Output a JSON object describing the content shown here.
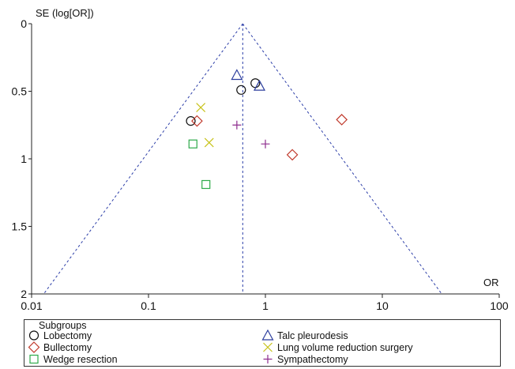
{
  "chart_data": {
    "type": "scatter",
    "title": "",
    "xlabel": "OR",
    "ylabel": "SE (log[OR])",
    "x_scale": "log",
    "y_reversed": true,
    "xlim": [
      0.01,
      100
    ],
    "ylim": [
      0,
      2
    ],
    "x_ticks": [
      0.01,
      0.1,
      1,
      10,
      100
    ],
    "x_tick_labels": [
      "0.01",
      "0.1",
      "1",
      "10",
      "100"
    ],
    "y_ticks": [
      0,
      0.5,
      1,
      1.5,
      2
    ],
    "y_tick_labels": [
      "0",
      "0.5",
      "1",
      "1.5",
      "2"
    ],
    "pooled_or": 0.64,
    "funnel": "95% pseudo-confidence limits (dashed)",
    "legend_title": "Subgroups",
    "series": [
      {
        "name": "Lobectomy",
        "marker": "circle",
        "color": "#111111",
        "points": [
          {
            "x": 0.23,
            "y": 0.72
          },
          {
            "x": 0.62,
            "y": 0.49
          },
          {
            "x": 0.82,
            "y": 0.44
          }
        ]
      },
      {
        "name": "Bullectomy",
        "marker": "diamond",
        "color": "#c0392b",
        "points": [
          {
            "x": 0.26,
            "y": 0.72
          },
          {
            "x": 1.7,
            "y": 0.97
          },
          {
            "x": 4.5,
            "y": 0.71
          }
        ]
      },
      {
        "name": "Wedge resection",
        "marker": "square",
        "color": "#2eaa4a",
        "points": [
          {
            "x": 0.24,
            "y": 0.89
          },
          {
            "x": 0.31,
            "y": 1.19
          }
        ]
      },
      {
        "name": "Talc pleurodesis",
        "marker": "triangle",
        "color": "#2d3f9e",
        "points": [
          {
            "x": 0.57,
            "y": 0.38
          },
          {
            "x": 0.89,
            "y": 0.46
          }
        ]
      },
      {
        "name": "Lung volume reduction surgery",
        "marker": "x",
        "color": "#c7c21a",
        "points": [
          {
            "x": 0.28,
            "y": 0.62
          },
          {
            "x": 0.33,
            "y": 0.88
          }
        ]
      },
      {
        "name": "Sympathectomy",
        "marker": "plus",
        "color": "#8e2d8e",
        "points": [
          {
            "x": 0.57,
            "y": 0.75
          },
          {
            "x": 1.0,
            "y": 0.89
          }
        ]
      }
    ],
    "legend_layout": [
      [
        0,
        3
      ],
      [
        1,
        4
      ],
      [
        2,
        5
      ]
    ]
  }
}
